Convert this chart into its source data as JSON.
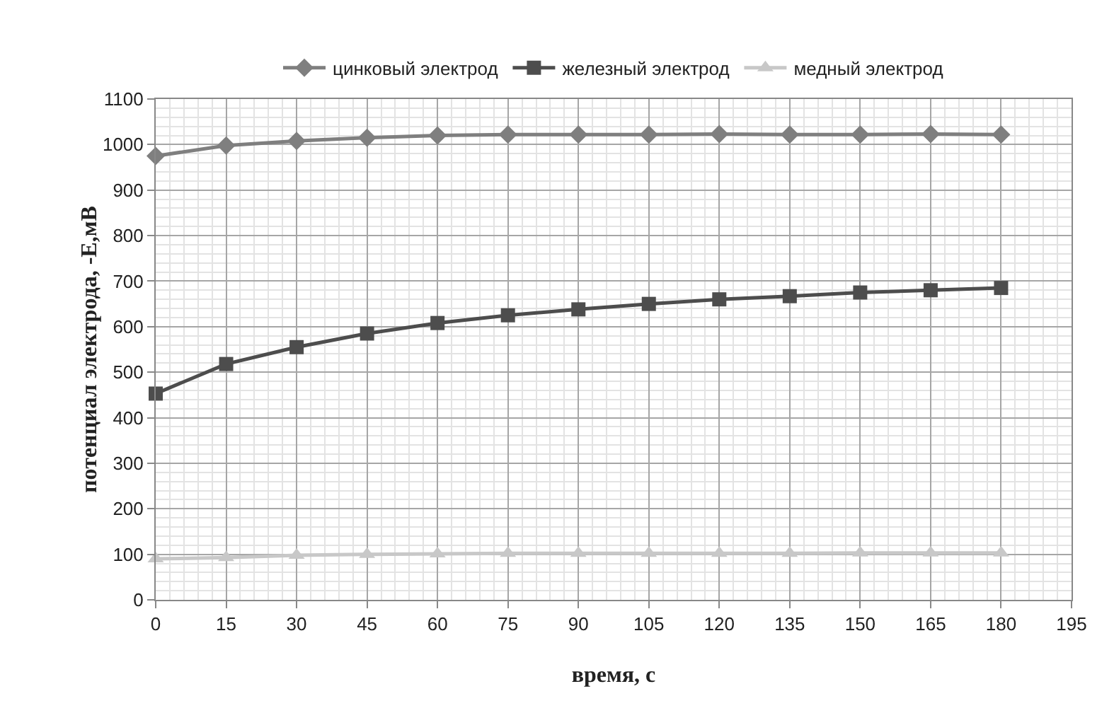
{
  "chart_data": {
    "type": "line",
    "xlabel": "время, с",
    "ylabel": "потенциал электрода, -E,мВ",
    "x": [
      0,
      15,
      30,
      45,
      60,
      75,
      90,
      105,
      120,
      135,
      150,
      165,
      180
    ],
    "series": [
      {
        "name": "цинковый электрод",
        "color": "#7f7f7f",
        "marker": "diamond",
        "values": [
          975,
          998,
          1008,
          1015,
          1020,
          1022,
          1022,
          1022,
          1023,
          1022,
          1022,
          1023,
          1022
        ]
      },
      {
        "name": "железный электрод",
        "color": "#4d4d4d",
        "marker": "square",
        "values": [
          453,
          518,
          555,
          585,
          608,
          625,
          638,
          650,
          660,
          667,
          675,
          680,
          685
        ]
      },
      {
        "name": "медный электрод",
        "color": "#c8c8c8",
        "marker": "triangle",
        "values": [
          90,
          93,
          98,
          100,
          101,
          102,
          102,
          102,
          102,
          102,
          103,
          103,
          103
        ]
      }
    ],
    "xlim": [
      0,
      195
    ],
    "xticks": [
      0,
      15,
      30,
      45,
      60,
      75,
      90,
      105,
      120,
      135,
      150,
      165,
      180,
      195
    ],
    "ylim": [
      0,
      1100
    ],
    "yticks": [
      0,
      100,
      200,
      300,
      400,
      500,
      600,
      700,
      800,
      900,
      1000,
      1100
    ],
    "grid": true,
    "legend": "top",
    "line_style": "solid"
  }
}
